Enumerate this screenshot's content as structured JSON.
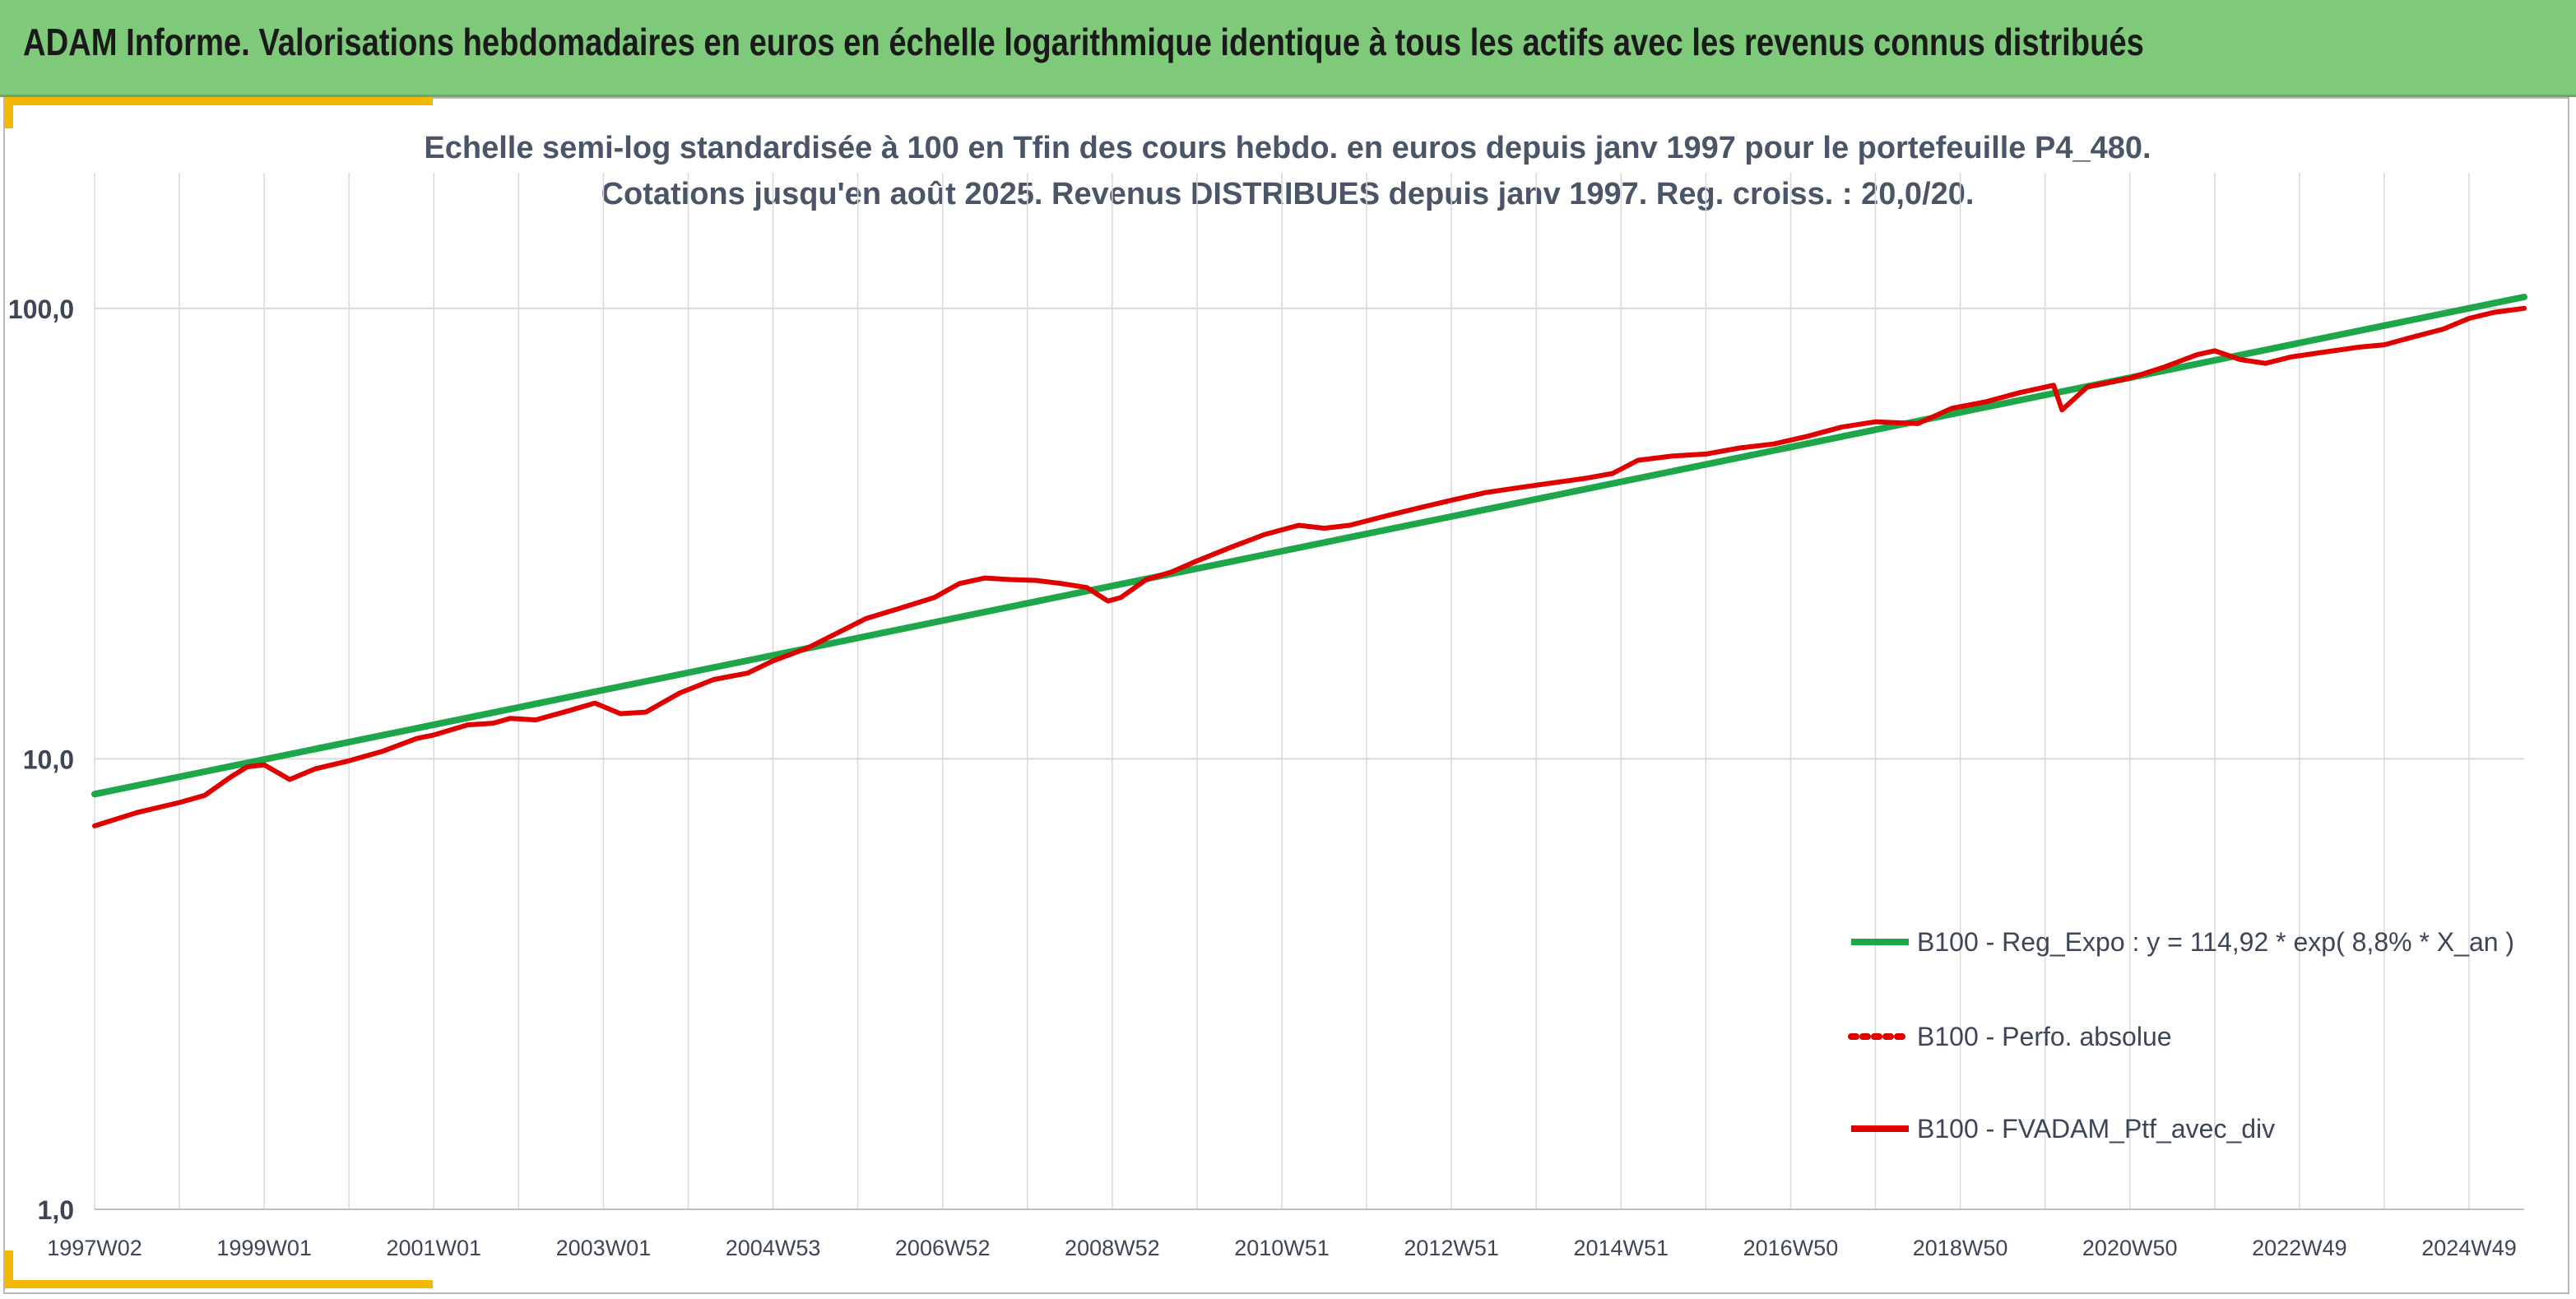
{
  "header": {
    "title": "ADAM Informe. Valorisations hebdomadaires en euros en échelle logarithmique identique à tous les actifs avec les revenus connus distribués"
  },
  "colors": {
    "banner": "#7fc97a",
    "accent": "#f5b800",
    "regression": "#1ea64a",
    "portfolio": "#e00000",
    "grid": "#d9d9d9"
  },
  "chart_data": {
    "type": "line",
    "title_lines": [
      "Echelle semi-log standardisée à 100 en Tfin des cours hebdo. en euros depuis janv 1997 pour le portefeuille P4_480.",
      "Cotations jusqu'en août 2025. Revenus DISTRIBUES depuis janv 1997. Reg. croiss. : 20,0/20."
    ],
    "y_scale": "log",
    "ylim": [
      1,
      200
    ],
    "y_ticks": [
      {
        "value": 1,
        "label": "1,0"
      },
      {
        "value": 10,
        "label": "10,0"
      },
      {
        "value": 100,
        "label": "100,0"
      }
    ],
    "xlim": [
      1997.0,
      2025.65
    ],
    "x_ticks": [
      {
        "value": 1997.0,
        "label": "1997W02"
      },
      {
        "value": 1999.0,
        "label": "1999W01"
      },
      {
        "value": 2001.0,
        "label": "2001W01"
      },
      {
        "value": 2003.0,
        "label": "2003W01"
      },
      {
        "value": 2005.0,
        "label": "2004W53"
      },
      {
        "value": 2007.0,
        "label": "2006W52"
      },
      {
        "value": 2009.0,
        "label": "2008W52"
      },
      {
        "value": 2011.0,
        "label": "2010W51"
      },
      {
        "value": 2013.0,
        "label": "2012W51"
      },
      {
        "value": 2015.0,
        "label": "2014W51"
      },
      {
        "value": 2017.0,
        "label": "2016W50"
      },
      {
        "value": 2019.0,
        "label": "2018W50"
      },
      {
        "value": 2021.0,
        "label": "2020W50"
      },
      {
        "value": 2023.0,
        "label": "2022W49"
      },
      {
        "value": 2025.0,
        "label": "2024W49"
      }
    ],
    "grid": true,
    "legend_position": "right",
    "series": [
      {
        "name": "B100 - Reg_Expo : y = 114,92 * exp( 8,8% *  X_an )",
        "color": "#1ea64a",
        "style": "solid",
        "x": [
          1997.0,
          2025.65
        ],
        "values": [
          8.35,
          106.0
        ]
      },
      {
        "name": "B100 - Perfo. absolue",
        "color": "#e00000",
        "style": "dotted",
        "x": [],
        "values": []
      },
      {
        "name": "B100 - FVADAM_Ptf_avec_div",
        "color": "#e00000",
        "style": "solid",
        "x": [
          1997.0,
          1997.5,
          1998.0,
          1998.3,
          1998.6,
          1998.8,
          1999.0,
          1999.3,
          1999.6,
          2000.0,
          2000.4,
          2000.8,
          2001.0,
          2001.4,
          2001.7,
          2001.9,
          2002.2,
          2002.6,
          2002.9,
          2003.2,
          2003.5,
          2003.9,
          2004.3,
          2004.7,
          2005.0,
          2005.4,
          2005.8,
          2006.1,
          2006.5,
          2006.9,
          2007.2,
          2007.5,
          2007.8,
          2008.1,
          2008.4,
          2008.7,
          2008.95,
          2009.1,
          2009.4,
          2009.7,
          2010.0,
          2010.4,
          2010.8,
          2011.2,
          2011.5,
          2011.8,
          2012.2,
          2012.6,
          2013.0,
          2013.4,
          2013.8,
          2014.2,
          2014.6,
          2014.9,
          2015.2,
          2015.6,
          2016.0,
          2016.4,
          2016.8,
          2017.2,
          2017.6,
          2018.0,
          2018.5,
          2018.9,
          2019.3,
          2019.7,
          2020.1,
          2020.2,
          2020.5,
          2021.0,
          2021.4,
          2021.8,
          2022.0,
          2022.3,
          2022.6,
          2022.9,
          2023.3,
          2023.7,
          2024.0,
          2024.3,
          2024.7,
          2025.0,
          2025.3,
          2025.65
        ],
        "values": [
          7.1,
          7.6,
          8.0,
          8.3,
          9.1,
          9.6,
          9.7,
          9.0,
          9.5,
          9.9,
          10.4,
          11.1,
          11.3,
          11.9,
          12.0,
          12.3,
          12.2,
          12.8,
          13.3,
          12.6,
          12.7,
          14.0,
          15.0,
          15.5,
          16.5,
          17.6,
          19.2,
          20.5,
          21.6,
          22.8,
          24.5,
          25.2,
          25.0,
          24.9,
          24.5,
          24.0,
          22.4,
          22.8,
          25.0,
          26.0,
          27.5,
          29.5,
          31.5,
          33.0,
          32.5,
          33.0,
          34.5,
          36.0,
          37.5,
          39.0,
          40.0,
          41.0,
          42.0,
          43.0,
          46.0,
          47.0,
          47.5,
          49.0,
          50.0,
          52.0,
          54.5,
          56.0,
          55.5,
          60.0,
          62.0,
          65.0,
          67.5,
          59.5,
          67.0,
          70.0,
          74.0,
          79.0,
          80.5,
          77.0,
          75.5,
          78.0,
          80.0,
          82.0,
          83.0,
          86.0,
          90.0,
          95.0,
          98.0,
          100.0
        ]
      }
    ]
  }
}
